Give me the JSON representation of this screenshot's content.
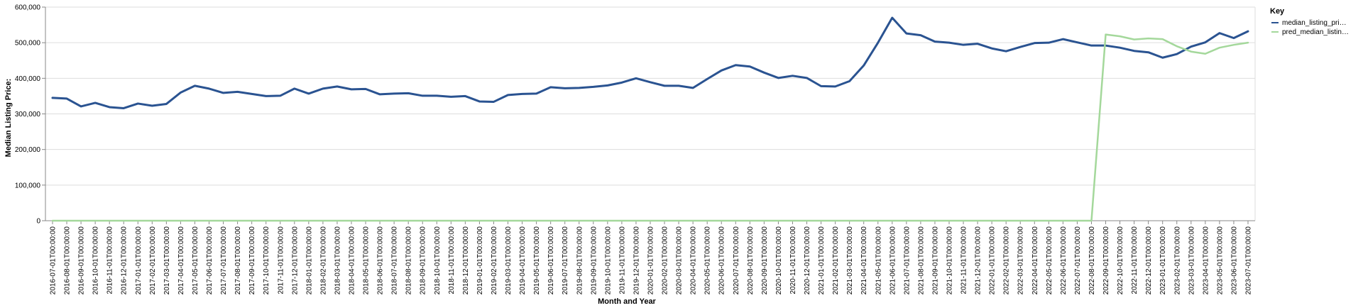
{
  "chart_data": {
    "type": "line",
    "xlabel": "Month and Year",
    "ylabel": "Median Listing Price:",
    "ylim": [
      0,
      600000
    ],
    "y_ticks": [
      0,
      100000,
      200000,
      300000,
      400000,
      500000,
      600000
    ],
    "y_tick_labels": [
      "0",
      "100,000",
      "200,000",
      "300,000",
      "400,000",
      "500,000",
      "600,000"
    ],
    "grid": true,
    "legend_title": "Key",
    "legend_position": "top-right",
    "x": [
      "2016-07-01T00:00:00",
      "2016-08-01T00:00:00",
      "2016-09-01T00:00:00",
      "2016-10-01T00:00:00",
      "2016-11-01T00:00:00",
      "2016-12-01T00:00:00",
      "2017-01-01T00:00:00",
      "2017-02-01T00:00:00",
      "2017-03-01T00:00:00",
      "2017-04-01T00:00:00",
      "2017-05-01T00:00:00",
      "2017-06-01T00:00:00",
      "2017-07-01T00:00:00",
      "2017-08-01T00:00:00",
      "2017-09-01T00:00:00",
      "2017-10-01T00:00:00",
      "2017-11-01T00:00:00",
      "2017-12-01T00:00:00",
      "2018-01-01T00:00:00",
      "2018-02-01T00:00:00",
      "2018-03-01T00:00:00",
      "2018-04-01T00:00:00",
      "2018-05-01T00:00:00",
      "2018-06-01T00:00:00",
      "2018-07-01T00:00:00",
      "2018-08-01T00:00:00",
      "2018-09-01T00:00:00",
      "2018-10-01T00:00:00",
      "2018-11-01T00:00:00",
      "2018-12-01T00:00:00",
      "2019-01-01T00:00:00",
      "2019-02-01T00:00:00",
      "2019-03-01T00:00:00",
      "2019-04-01T00:00:00",
      "2019-05-01T00:00:00",
      "2019-06-01T00:00:00",
      "2019-07-01T00:00:00",
      "2019-08-01T00:00:00",
      "2019-09-01T00:00:00",
      "2019-10-01T00:00:00",
      "2019-11-01T00:00:00",
      "2019-12-01T00:00:00",
      "2020-01-01T00:00:00",
      "2020-02-01T00:00:00",
      "2020-03-01T00:00:00",
      "2020-04-01T00:00:00",
      "2020-05-01T00:00:00",
      "2020-06-01T00:00:00",
      "2020-07-01T00:00:00",
      "2020-08-01T00:00:00",
      "2020-09-01T00:00:00",
      "2020-10-01T00:00:00",
      "2020-11-01T00:00:00",
      "2020-12-01T00:00:00",
      "2021-01-01T00:00:00",
      "2021-02-01T00:00:00",
      "2021-03-01T00:00:00",
      "2021-04-01T00:00:00",
      "2021-05-01T00:00:00",
      "2021-06-01T00:00:00",
      "2021-07-01T00:00:00",
      "2021-08-01T00:00:00",
      "2021-09-01T00:00:00",
      "2021-10-01T00:00:00",
      "2021-11-01T00:00:00",
      "2021-12-01T00:00:00",
      "2022-01-01T00:00:00",
      "2022-02-01T00:00:00",
      "2022-03-01T00:00:00",
      "2022-04-01T00:00:00",
      "2022-05-01T00:00:00",
      "2022-06-01T00:00:00",
      "2022-07-01T00:00:00",
      "2022-08-01T00:00:00",
      "2022-09-01T00:00:00",
      "2022-10-01T00:00:00",
      "2022-11-01T00:00:00",
      "2022-12-01T00:00:00",
      "2023-01-01T00:00:00",
      "2023-02-01T00:00:00",
      "2023-03-01T00:00:00",
      "2023-04-01T00:00:00",
      "2023-05-01T00:00:00",
      "2023-06-01T00:00:00",
      "2023-07-01T00:00:00"
    ],
    "series": [
      {
        "name": "median_listing_pri…",
        "color": "#2a5391",
        "values": [
          345000,
          343000,
          321000,
          331000,
          319000,
          316000,
          329000,
          323000,
          328000,
          360000,
          379000,
          371000,
          359000,
          362000,
          356000,
          350000,
          351000,
          371000,
          357000,
          371000,
          377000,
          369000,
          370000,
          355000,
          357000,
          358000,
          351000,
          351000,
          348000,
          350000,
          335000,
          334000,
          353000,
          356000,
          357000,
          375000,
          372000,
          373000,
          376000,
          380000,
          388000,
          400000,
          389000,
          379000,
          379000,
          373000,
          398000,
          422000,
          437000,
          433000,
          416000,
          401000,
          407000,
          401000,
          378000,
          377000,
          392000,
          436000,
          500000,
          570000,
          526000,
          521000,
          503000,
          500000,
          494000,
          497000,
          484000,
          476000,
          488000,
          499000,
          500000,
          510000,
          501000,
          492000,
          492000,
          486000,
          477000,
          473000,
          458000,
          468000,
          489000,
          501000,
          527000,
          513000,
          532000
        ]
      },
      {
        "name": "pred_median_listin…",
        "color": "#a4d89b",
        "values": [
          0,
          0,
          0,
          0,
          0,
          0,
          0,
          0,
          0,
          0,
          0,
          0,
          0,
          0,
          0,
          0,
          0,
          0,
          0,
          0,
          0,
          0,
          0,
          0,
          0,
          0,
          0,
          0,
          0,
          0,
          0,
          0,
          0,
          0,
          0,
          0,
          0,
          0,
          0,
          0,
          0,
          0,
          0,
          0,
          0,
          0,
          0,
          0,
          0,
          0,
          0,
          0,
          0,
          0,
          0,
          0,
          0,
          0,
          0,
          0,
          0,
          0,
          0,
          0,
          0,
          0,
          0,
          0,
          0,
          0,
          0,
          0,
          0,
          0,
          523000,
          518000,
          509000,
          512000,
          510000,
          490000,
          475000,
          469000,
          486000,
          494000,
          500000
        ]
      }
    ]
  }
}
